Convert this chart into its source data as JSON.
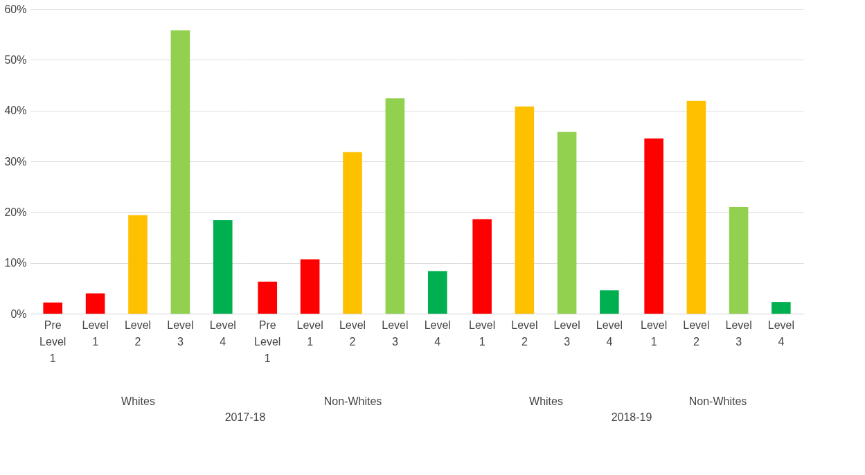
{
  "chart_data": [
    {
      "type": "bar",
      "xlabel": "Whites",
      "annotations": [
        "2017-18"
      ],
      "categories": [
        "Pre Level 1",
        "Level 1",
        "Level 2",
        "Level 3",
        "Level 4"
      ],
      "values": [
        2.2,
        4.0,
        19.4,
        55.8,
        18.4
      ],
      "colors": [
        "#ff0000",
        "#ff0000",
        "#ffc000",
        "#92d050",
        "#00b050"
      ],
      "ylim": [
        0,
        60
      ],
      "yticks": [
        {
          "value": 0,
          "label": "0%"
        },
        {
          "value": 10,
          "label": "10%"
        },
        {
          "value": 20,
          "label": "20%"
        },
        {
          "value": 30,
          "label": "30%"
        },
        {
          "value": 40,
          "label": "40%"
        },
        {
          "value": 50,
          "label": "50%"
        },
        {
          "value": 60,
          "label": "60%"
        }
      ],
      "grid": "y"
    },
    {
      "type": "bar",
      "xlabel": "Non-Whites",
      "categories": [
        "Pre Level 1",
        "Level 1",
        "Level 2",
        "Level 3",
        "Level 4"
      ],
      "values": [
        6.3,
        10.7,
        31.8,
        42.4,
        8.4
      ],
      "colors": [
        "#ff0000",
        "#ff0000",
        "#ffc000",
        "#92d050",
        "#00b050"
      ],
      "ylim": [
        0,
        60
      ],
      "yticks": [
        {
          "value": 0,
          "label": null
        },
        {
          "value": 10,
          "label": null
        },
        {
          "value": 20,
          "label": null
        },
        {
          "value": 30,
          "label": null
        },
        {
          "value": 40,
          "label": null
        },
        {
          "value": 50,
          "label": null
        },
        {
          "value": 60,
          "label": null
        }
      ],
      "grid": "y",
      "tick_labels": "x"
    },
    {
      "type": "bar",
      "xlabel": "Whites",
      "annotations": [
        "2018-19"
      ],
      "categories": [
        "Level 1",
        "Level 2",
        "Level 3",
        "Level 4"
      ],
      "values": [
        18.6,
        40.8,
        35.8,
        4.6
      ],
      "colors": [
        "#ff0000",
        "#ffc000",
        "#92d050",
        "#00b050"
      ],
      "ylim": [
        0,
        60
      ],
      "yticks": [
        {
          "value": 0,
          "label": null
        },
        {
          "value": 10,
          "label": null
        },
        {
          "value": 20,
          "label": null
        },
        {
          "value": 30,
          "label": null
        },
        {
          "value": 40,
          "label": null
        },
        {
          "value": 50,
          "label": null
        },
        {
          "value": 60,
          "label": null
        }
      ],
      "grid": "y",
      "tick_labels": "x"
    },
    {
      "type": "bar",
      "xlabel": "Non-Whites",
      "categories": [
        "Level 1",
        "Level 2",
        "Level 3",
        "Level 4"
      ],
      "values": [
        34.5,
        41.9,
        21.0,
        2.3
      ],
      "colors": [
        "#ff0000",
        "#ffc000",
        "#92d050",
        "#00b050"
      ],
      "ylim": [
        0,
        60
      ],
      "yticks": [
        {
          "value": 0,
          "label": null
        },
        {
          "value": 10,
          "label": null
        },
        {
          "value": 20,
          "label": null
        },
        {
          "value": 30,
          "label": null
        },
        {
          "value": 40,
          "label": null
        },
        {
          "value": 50,
          "label": null
        },
        {
          "value": 60,
          "label": null
        }
      ],
      "grid": "y",
      "tick_labels": "x"
    }
  ]
}
